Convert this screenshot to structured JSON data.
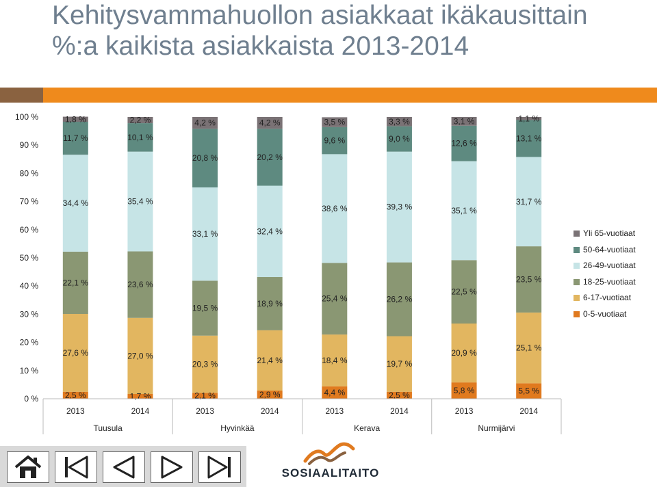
{
  "title": "Kehitysvammahuollon asiakkaat ikäkausittain %:a kaikista asiakkaista 2013-2014",
  "colors": {
    "yli65": "#7a7275",
    "v50_64": "#5e8a80",
    "v26_49": "#c6e4e6",
    "v18_25": "#8a9773",
    "v6_17": "#e2b660",
    "v0_5": "#e07a1f"
  },
  "chart_data": {
    "type": "bar",
    "stacked": true,
    "title": "Kehitysvammahuollon asiakkaat ikäkausittain %:a kaikista asiakkaista 2013-2014",
    "categories": [
      "2013",
      "2014",
      "2013",
      "2014",
      "2013",
      "2014",
      "2013",
      "2014"
    ],
    "groups": [
      "Tuusula",
      "Hyvinkää",
      "Kerava",
      "Nurmijärvi"
    ],
    "yticks": [
      "0 %",
      "10 %",
      "20 %",
      "30 %",
      "40 %",
      "50 %",
      "60 %",
      "70 %",
      "80 %",
      "90 %",
      "100 %"
    ],
    "ylim": [
      0,
      100
    ],
    "legend_position": "right",
    "series": [
      {
        "name": "0-5-vuotiaat",
        "color": "#e07a1f",
        "values": [
          2.5,
          1.7,
          2.1,
          2.9,
          4.4,
          2.5,
          5.8,
          5.5
        ],
        "labels": [
          "2,5 %",
          "1,7 %",
          "2,1 %",
          "2,9 %",
          "4,4 %",
          "2,5 %",
          "5,8 %",
          "5,5 %"
        ]
      },
      {
        "name": "6-17-vuotiaat",
        "color": "#e2b660",
        "values": [
          27.6,
          27.0,
          20.3,
          21.4,
          18.4,
          19.7,
          20.9,
          25.1
        ],
        "labels": [
          "27,6 %",
          "27,0 %",
          "20,3 %",
          "21,4 %",
          "18,4 %",
          "19,7 %",
          "20,9 %",
          "25,1 %"
        ]
      },
      {
        "name": "18-25-vuotiaat",
        "color": "#8a9773",
        "values": [
          22.1,
          23.6,
          19.5,
          18.9,
          25.4,
          26.2,
          22.5,
          23.5
        ],
        "labels": [
          "22,1 %",
          "23,6 %",
          "19,5 %",
          "18,9 %",
          "25,4 %",
          "26,2 %",
          "22,5 %",
          "23,5 %"
        ]
      },
      {
        "name": "26-49-vuotiaat",
        "color": "#c6e4e6",
        "values": [
          34.4,
          35.4,
          33.1,
          32.4,
          38.6,
          39.3,
          35.1,
          31.7
        ],
        "labels": [
          "34,4 %",
          "35,4 %",
          "33,1 %",
          "32,4 %",
          "38,6 %",
          "39,3 %",
          "35,1 %",
          "31,7 %"
        ]
      },
      {
        "name": "50-64-vuotiaat",
        "color": "#5e8a80",
        "values": [
          11.7,
          10.1,
          20.8,
          20.2,
          9.6,
          9.0,
          12.6,
          13.1
        ],
        "labels": [
          "11,7 %",
          "10,1 %",
          "20,8 %",
          "20,2 %",
          "9,6 %",
          "9,0 %",
          "12,6 %",
          "13,1 %"
        ]
      },
      {
        "name": "Yli 65-vuotiaat",
        "color": "#7a7275",
        "values": [
          1.8,
          2.2,
          4.2,
          4.2,
          3.5,
          3.3,
          3.1,
          1.1
        ],
        "labels": [
          "1,8 %",
          "2,2 %",
          "4,2 %",
          "4,2 %",
          "3,5 %",
          "3,3 %",
          "3,1 %",
          "1,1 %"
        ]
      }
    ]
  },
  "legend": {
    "items": [
      {
        "label": "Yli 65-vuotiaat",
        "color": "#7a7275"
      },
      {
        "label": "50-64-vuotiaat",
        "color": "#5e8a80"
      },
      {
        "label": "26-49-vuotiaat",
        "color": "#c6e4e6"
      },
      {
        "label": "18-25-vuotiaat",
        "color": "#8a9773"
      },
      {
        "label": "6-17-vuotiaat",
        "color": "#e2b660"
      },
      {
        "label": "0-5-vuotiaat",
        "color": "#e07a1f"
      }
    ]
  },
  "nav": {
    "icons": [
      "home-icon",
      "first-slide-icon",
      "previous-slide-icon",
      "next-slide-icon",
      "last-slide-icon"
    ]
  },
  "logo": {
    "text": "SOSIAALITAITO",
    "brand_color": "#e07a1f"
  }
}
